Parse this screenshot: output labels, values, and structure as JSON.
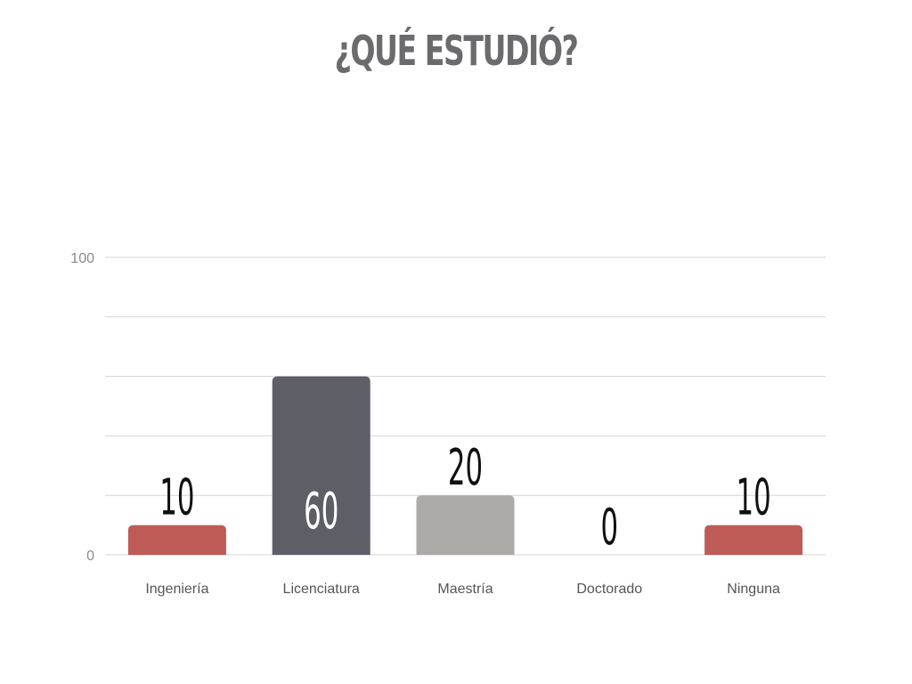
{
  "title": "¿QUÉ ESTUDIÓ?",
  "colors": {
    "red": "#bf5b57",
    "dark": "#5e5e66",
    "gray": "#abaaa6",
    "grid": "#d4d4d4",
    "label_dark": "#111111",
    "label_light": "#ffffff"
  },
  "chart_data": {
    "type": "bar",
    "title": "¿QUÉ ESTUDIÓ?",
    "xlabel": "",
    "ylabel": "",
    "categories": [
      "Ingeniería",
      "Licenciatura",
      "Maestría",
      "Doctorado",
      "Ninguna"
    ],
    "values": [
      10,
      60,
      20,
      0,
      10
    ],
    "bar_colors": [
      "#bf5b57",
      "#5e5e66",
      "#abaaa6",
      "#abaaa6",
      "#bf5b57"
    ],
    "data_labels": [
      "10",
      "60",
      "20",
      "0",
      "10"
    ],
    "data_label_inside": [
      false,
      true,
      false,
      false,
      false
    ],
    "ylim": [
      0,
      100
    ],
    "y_tick_labels": [
      "0",
      "100"
    ],
    "gridlines": [
      0,
      20,
      40,
      60,
      80,
      100
    ],
    "grid": true,
    "legend": "none"
  }
}
